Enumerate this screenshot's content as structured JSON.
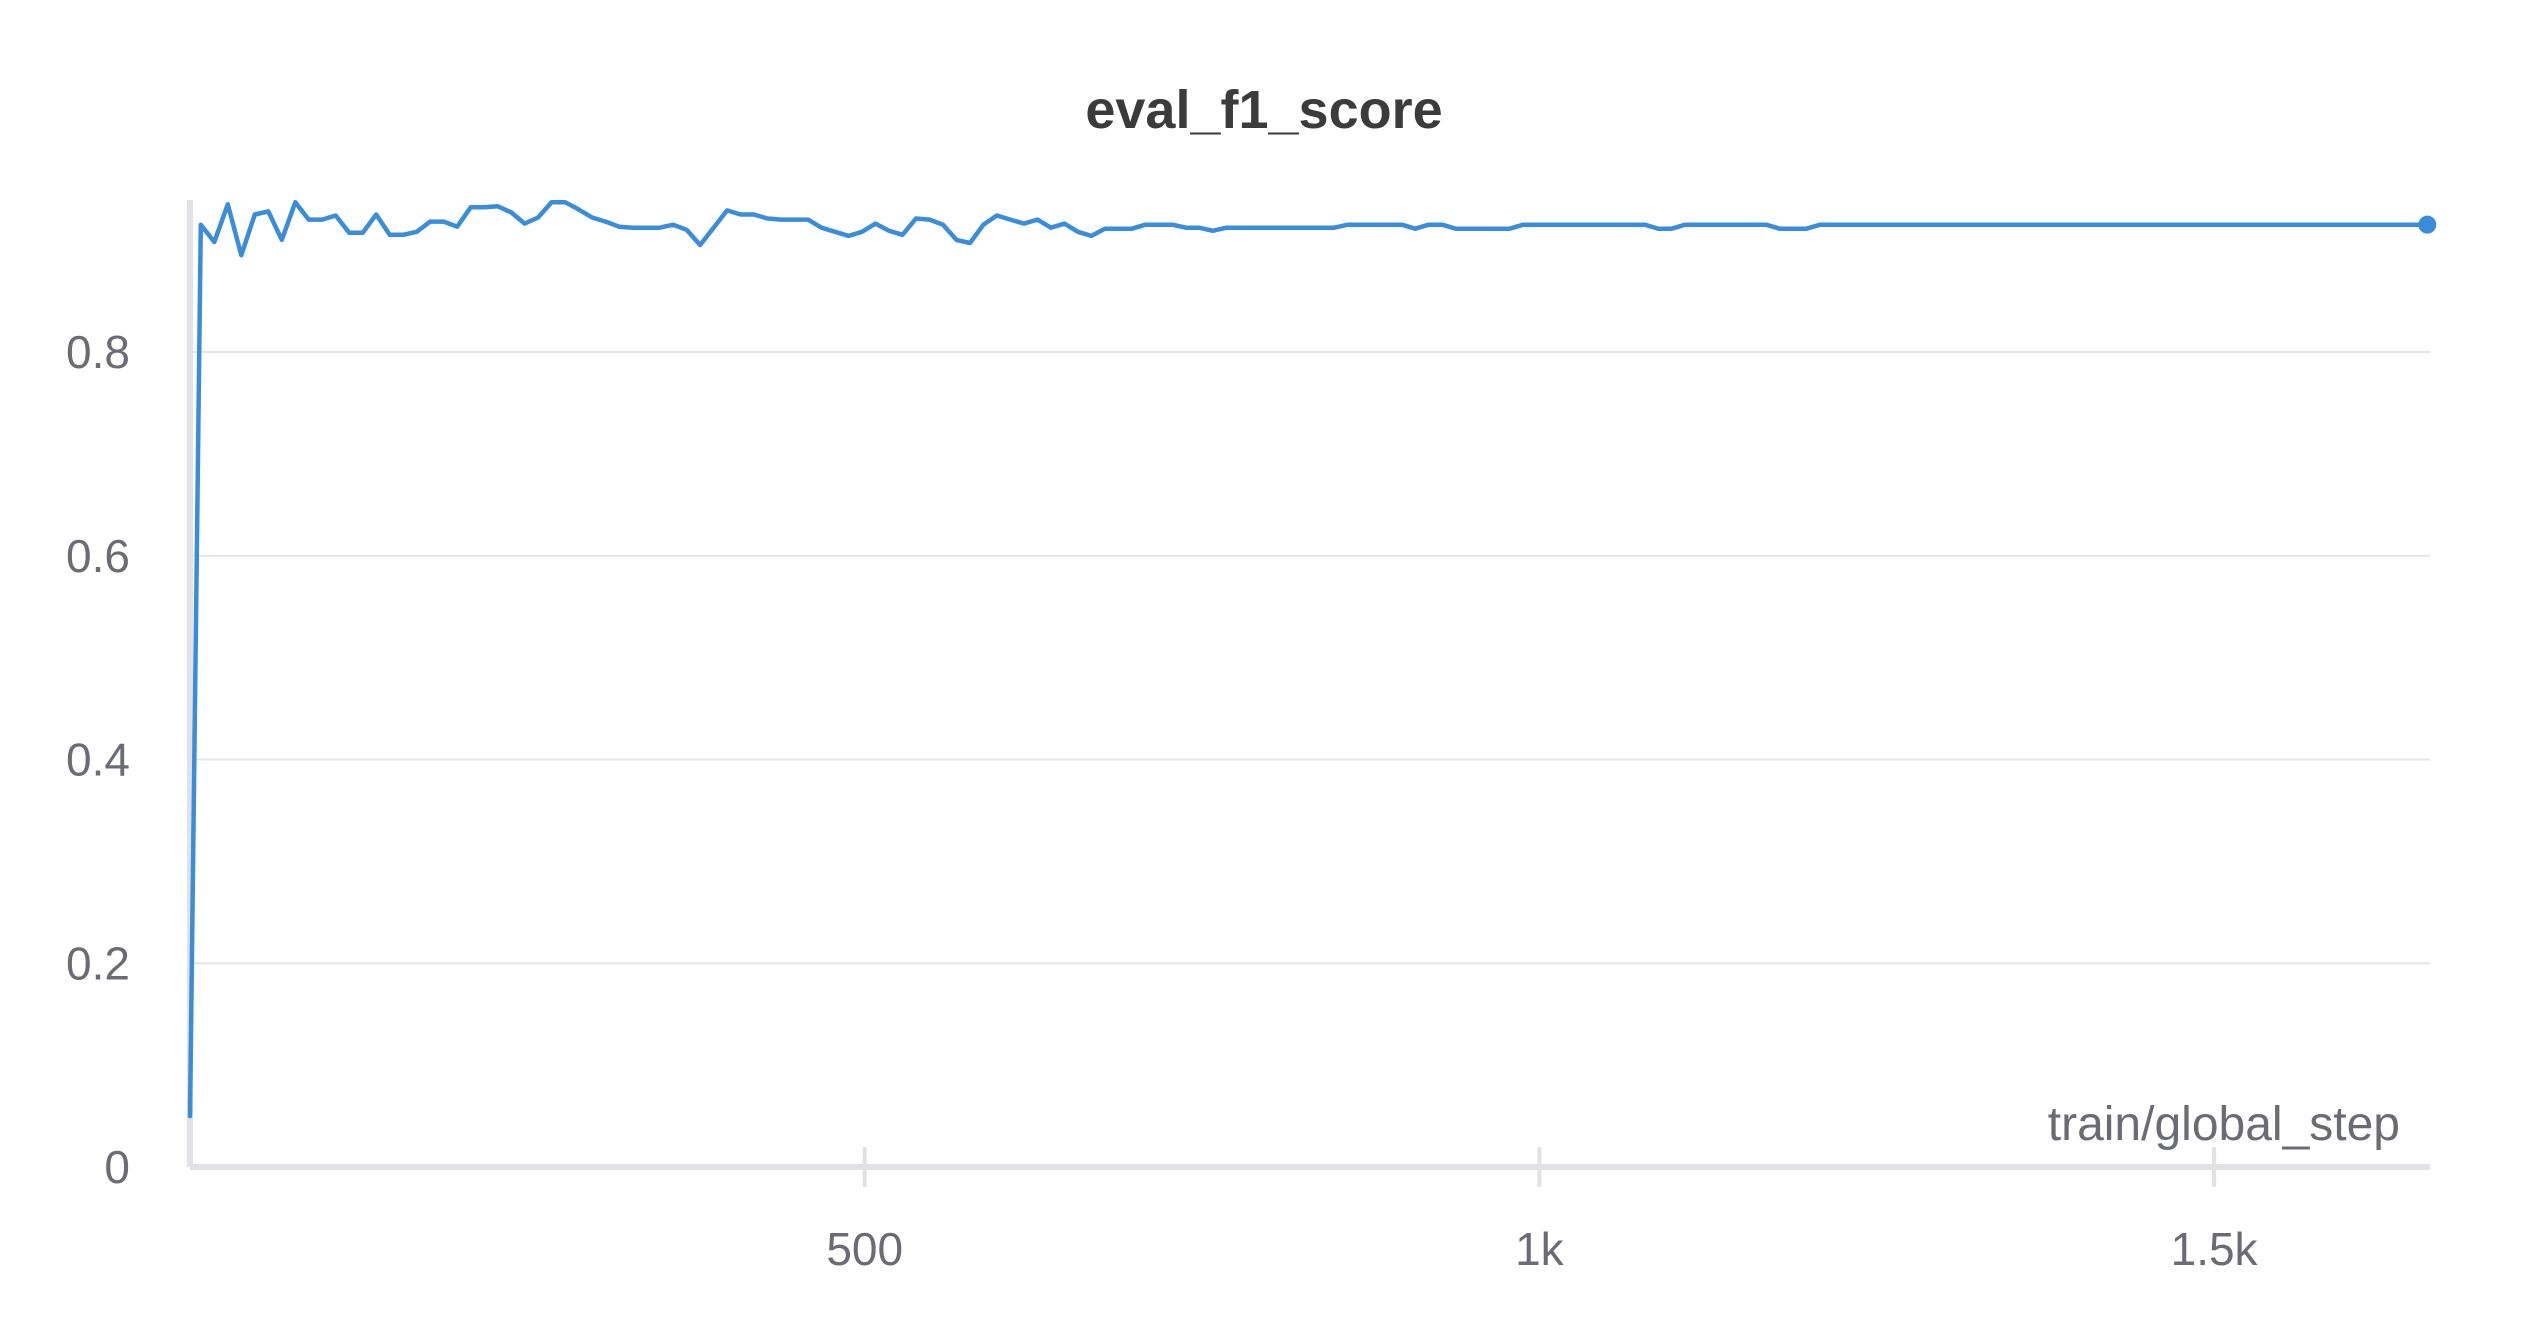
{
  "chart_data": {
    "type": "line",
    "title": "eval_f1_score",
    "xlabel": "train/global_step",
    "ylabel": "",
    "xlim": [
      0,
      1660
    ],
    "ylim": [
      0,
      0.95
    ],
    "x_ticks": [
      {
        "value": 500,
        "label": "500"
      },
      {
        "value": 1000,
        "label": "1k"
      },
      {
        "value": 1500,
        "label": "1.5k"
      }
    ],
    "y_ticks": [
      {
        "value": 0,
        "label": "0"
      },
      {
        "value": 0.2,
        "label": "0.2"
      },
      {
        "value": 0.4,
        "label": "0.4"
      },
      {
        "value": 0.6,
        "label": "0.6"
      },
      {
        "value": 0.8,
        "label": "0.8"
      }
    ],
    "grid": true,
    "legend": "none",
    "colors": {
      "series": "#3a8ddb"
    },
    "series": [
      {
        "x": [
          0,
          8,
          18,
          28,
          38,
          48,
          58,
          68,
          78,
          88,
          98,
          108,
          118,
          128,
          138,
          148,
          158,
          168,
          178,
          188,
          198,
          208,
          218,
          228,
          238,
          248,
          258,
          268,
          278,
          288,
          298,
          308,
          318,
          328,
          338,
          348,
          358,
          368,
          378,
          388,
          398,
          408,
          418,
          428,
          438,
          448,
          458,
          468,
          478,
          488,
          498,
          508,
          518,
          528,
          538,
          548,
          558,
          568,
          578,
          588,
          598,
          608,
          618,
          628,
          638,
          648,
          658,
          668,
          678,
          688,
          698,
          708,
          718,
          728,
          738,
          748,
          758,
          768,
          778,
          788,
          798,
          808,
          818,
          828,
          838,
          848,
          858,
          868,
          878,
          888,
          898,
          908,
          918,
          928,
          938,
          948,
          958,
          968,
          978,
          988,
          998,
          1008,
          1018,
          1028,
          1038,
          1048,
          1058,
          1068,
          1078,
          1088,
          1098,
          1108,
          1118,
          1128,
          1138,
          1148,
          1158,
          1168,
          1178,
          1188,
          1198,
          1208,
          1218,
          1228,
          1238,
          1248,
          1258,
          1268,
          1278,
          1288,
          1298,
          1308,
          1318,
          1328,
          1338,
          1348,
          1358,
          1368,
          1378,
          1388,
          1398,
          1408,
          1418,
          1428,
          1438,
          1448,
          1458,
          1468,
          1478,
          1488,
          1498,
          1508,
          1518,
          1528,
          1538,
          1548,
          1558,
          1568,
          1578,
          1588,
          1598,
          1608,
          1618,
          1628,
          1638,
          1648,
          1658
        ],
        "y": [
          0.05,
          0.925,
          0.908,
          0.945,
          0.895,
          0.935,
          0.938,
          0.91,
          0.947,
          0.93,
          0.93,
          0.934,
          0.917,
          0.917,
          0.935,
          0.915,
          0.915,
          0.918,
          0.928,
          0.928,
          0.923,
          0.942,
          0.942,
          0.943,
          0.937,
          0.926,
          0.932,
          0.947,
          0.947,
          0.94,
          0.932,
          0.928,
          0.923,
          0.922,
          0.922,
          0.922,
          0.925,
          0.92,
          0.905,
          0.922,
          0.939,
          0.935,
          0.935,
          0.931,
          0.93,
          0.93,
          0.93,
          0.922,
          0.918,
          0.914,
          0.918,
          0.926,
          0.919,
          0.915,
          0.931,
          0.93,
          0.925,
          0.91,
          0.907,
          0.925,
          0.934,
          0.93,
          0.926,
          0.93,
          0.922,
          0.926,
          0.918,
          0.914,
          0.921,
          0.921,
          0.921,
          0.925,
          0.925,
          0.925,
          0.922,
          0.922,
          0.919,
          0.922,
          0.922,
          0.922,
          0.922,
          0.922,
          0.922,
          0.922,
          0.922,
          0.922,
          0.925,
          0.925,
          0.925,
          0.925,
          0.925,
          0.921,
          0.925,
          0.925,
          0.921,
          0.921,
          0.921,
          0.921,
          0.921,
          0.925,
          0.925,
          0.925,
          0.925,
          0.925,
          0.925,
          0.925,
          0.925,
          0.925,
          0.925,
          0.921,
          0.921,
          0.925,
          0.925,
          0.925,
          0.925,
          0.925,
          0.925,
          0.925,
          0.921,
          0.921,
          0.921,
          0.925,
          0.925,
          0.925,
          0.925,
          0.925,
          0.925,
          0.925,
          0.925,
          0.925,
          0.925,
          0.925,
          0.925,
          0.925,
          0.925,
          0.925,
          0.925,
          0.925,
          0.925,
          0.925,
          0.925,
          0.925,
          0.925,
          0.925,
          0.925,
          0.925,
          0.925,
          0.925,
          0.925,
          0.925,
          0.925,
          0.925,
          0.925,
          0.925,
          0.925,
          0.925,
          0.925,
          0.925,
          0.925,
          0.925,
          0.925,
          0.925,
          0.925,
          0.925,
          0.925,
          0.925,
          0.925
        ]
      }
    ]
  }
}
